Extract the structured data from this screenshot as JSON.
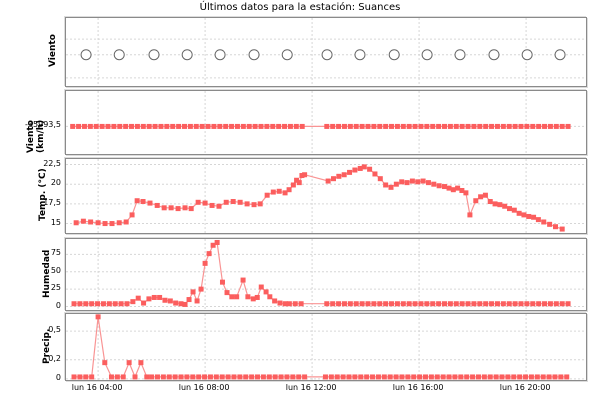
{
  "title": "Últimos datos para la estación: Suances",
  "colors": {
    "marker": "#fb5e5e",
    "line": "#f99494",
    "circle_outline": "#666666",
    "grid": "#d6d6d6",
    "panel_border": "#8a8a8a"
  },
  "chart_data": {
    "type": "line",
    "title": "Últimos datos para la estación: Suances",
    "legend_position": "none",
    "grid": "dashed",
    "x_axis": {
      "xlim": [
        2.8,
        22.24
      ],
      "unit": "hours",
      "ticks": [
        {
          "v": 4,
          "label": "lun 16 04:00"
        },
        {
          "v": 8,
          "label": "lun 16 08:00"
        },
        {
          "v": 12,
          "label": "lun 16 12:00"
        },
        {
          "v": 16,
          "label": "lun 16 16:00"
        },
        {
          "v": 20,
          "label": "lun 16 20:00"
        }
      ]
    },
    "run_step": 0.22,
    "panels": [
      {
        "id": "viento-dir",
        "ylabel": "Viento",
        "marker": "circle-open",
        "line": false,
        "ylim": [
          0,
          1
        ],
        "yticks": [],
        "ygrid": [
          0.69,
          0.46,
          0.12
        ],
        "points": [
          [
            3.55,
            0.46
          ],
          [
            4.79,
            0.46
          ],
          [
            6.09,
            0.46
          ],
          [
            7.33,
            0.46
          ],
          [
            8.56,
            0.46
          ],
          [
            9.83,
            0.46
          ],
          [
            11.07,
            0.46
          ],
          [
            12.56,
            0.46
          ],
          [
            13.79,
            0.46
          ],
          [
            15.07,
            0.46
          ],
          [
            16.3,
            0.46
          ],
          [
            17.53,
            0.46
          ],
          [
            18.8,
            0.46
          ],
          [
            20.04,
            0.46
          ],
          [
            21.27,
            0.46
          ]
        ]
      },
      {
        "id": "viento-vel",
        "ylabel": "Viento (km/h)",
        "marker": "square",
        "ylim": [
          -64000,
          0
        ],
        "yticks": [
          {
            "v": -35993.5,
            "label": "-35993,5"
          }
        ],
        "runs": [
          [
            3.05,
            11.7,
            -35993.5
          ],
          [
            12.55,
            21.65,
            -35993.5
          ]
        ]
      },
      {
        "id": "temp",
        "ylabel": "Temp. (°C)",
        "marker": "square",
        "ylim": [
          13.8,
          23.2
        ],
        "yticks": [
          {
            "v": 15,
            "label": "15"
          },
          {
            "v": 17.5,
            "label": "17,5"
          },
          {
            "v": 20,
            "label": "20"
          },
          {
            "v": 22.5,
            "label": "22,5"
          }
        ],
        "points": [
          [
            3.18,
            15.1
          ],
          [
            3.45,
            15.3
          ],
          [
            3.72,
            15.2
          ],
          [
            4.0,
            15.1
          ],
          [
            4.26,
            15.0
          ],
          [
            4.52,
            15.0
          ],
          [
            4.79,
            15.1
          ],
          [
            5.05,
            15.2
          ],
          [
            5.27,
            16.1
          ],
          [
            5.46,
            17.9
          ],
          [
            5.68,
            17.8
          ],
          [
            5.94,
            17.6
          ],
          [
            6.21,
            17.3
          ],
          [
            6.47,
            17.0
          ],
          [
            6.73,
            17.0
          ],
          [
            6.99,
            16.9
          ],
          [
            7.25,
            17.0
          ],
          [
            7.48,
            16.9
          ],
          [
            7.74,
            17.7
          ],
          [
            8.0,
            17.6
          ],
          [
            8.26,
            17.3
          ],
          [
            8.52,
            17.2
          ],
          [
            8.79,
            17.7
          ],
          [
            9.05,
            17.8
          ],
          [
            9.31,
            17.7
          ],
          [
            9.57,
            17.5
          ],
          [
            9.83,
            17.4
          ],
          [
            10.06,
            17.5
          ],
          [
            10.32,
            18.6
          ],
          [
            10.55,
            19.0
          ],
          [
            10.77,
            19.1
          ],
          [
            10.99,
            18.9
          ],
          [
            11.14,
            19.3
          ],
          [
            11.3,
            19.9
          ],
          [
            11.42,
            20.5
          ],
          [
            11.52,
            20.2
          ],
          [
            11.62,
            21.1
          ],
          [
            11.72,
            21.2
          ],
          [
            12.6,
            20.4
          ],
          [
            12.8,
            20.7
          ],
          [
            13.0,
            21.0
          ],
          [
            13.2,
            21.2
          ],
          [
            13.4,
            21.5
          ],
          [
            13.6,
            21.8
          ],
          [
            13.8,
            22.0
          ],
          [
            13.95,
            22.2
          ],
          [
            14.15,
            21.9
          ],
          [
            14.35,
            21.3
          ],
          [
            14.55,
            20.7
          ],
          [
            14.75,
            19.9
          ],
          [
            14.95,
            19.6
          ],
          [
            15.15,
            20.0
          ],
          [
            15.35,
            20.3
          ],
          [
            15.55,
            20.2
          ],
          [
            15.75,
            20.4
          ],
          [
            15.95,
            20.3
          ],
          [
            16.15,
            20.4
          ],
          [
            16.35,
            20.2
          ],
          [
            16.55,
            20.0
          ],
          [
            16.75,
            19.8
          ],
          [
            16.95,
            19.7
          ],
          [
            17.12,
            19.5
          ],
          [
            17.28,
            19.3
          ],
          [
            17.44,
            19.5
          ],
          [
            17.6,
            19.2
          ],
          [
            17.75,
            18.9
          ],
          [
            17.9,
            16.1
          ],
          [
            18.12,
            17.9
          ],
          [
            18.3,
            18.4
          ],
          [
            18.48,
            18.6
          ],
          [
            18.66,
            17.8
          ],
          [
            18.84,
            17.5
          ],
          [
            19.02,
            17.4
          ],
          [
            19.2,
            17.2
          ],
          [
            19.38,
            16.9
          ],
          [
            19.56,
            16.7
          ],
          [
            19.74,
            16.3
          ],
          [
            19.92,
            16.1
          ],
          [
            20.1,
            15.9
          ],
          [
            20.28,
            15.8
          ],
          [
            20.46,
            15.5
          ],
          [
            20.66,
            15.2
          ],
          [
            20.88,
            14.9
          ],
          [
            21.1,
            14.6
          ],
          [
            21.35,
            14.3
          ]
        ]
      },
      {
        "id": "humedad",
        "ylabel": "Humedad",
        "marker": "square",
        "ylim": [
          -5,
          97
        ],
        "yticks": [
          {
            "v": 0,
            "label": "0"
          },
          {
            "v": 25,
            "label": "25"
          },
          {
            "v": 50,
            "label": "50"
          },
          {
            "v": 75,
            "label": "75"
          }
        ],
        "points": [
          [
            3.1,
            4
          ],
          [
            3.32,
            4
          ],
          [
            3.54,
            4
          ],
          [
            3.76,
            4
          ],
          [
            3.98,
            4
          ],
          [
            4.2,
            4
          ],
          [
            4.42,
            4
          ],
          [
            4.64,
            4
          ],
          [
            4.86,
            4
          ],
          [
            5.08,
            4
          ],
          [
            5.3,
            7
          ],
          [
            5.5,
            12
          ],
          [
            5.7,
            5
          ],
          [
            5.9,
            11
          ],
          [
            6.1,
            13
          ],
          [
            6.3,
            13
          ],
          [
            6.5,
            9
          ],
          [
            6.7,
            8
          ],
          [
            6.9,
            5
          ],
          [
            7.1,
            4
          ],
          [
            7.25,
            3
          ],
          [
            7.4,
            10
          ],
          [
            7.55,
            21
          ],
          [
            7.7,
            8
          ],
          [
            7.85,
            25
          ],
          [
            8.0,
            62
          ],
          [
            8.15,
            76
          ],
          [
            8.3,
            88
          ],
          [
            8.45,
            92
          ],
          [
            8.65,
            35
          ],
          [
            8.82,
            20
          ],
          [
            9.0,
            14
          ],
          [
            9.18,
            14
          ],
          [
            9.42,
            38
          ],
          [
            9.6,
            14
          ],
          [
            9.8,
            11
          ],
          [
            9.95,
            13
          ],
          [
            10.1,
            28
          ],
          [
            10.28,
            21
          ],
          [
            10.42,
            14
          ],
          [
            10.6,
            8
          ],
          [
            10.8,
            5
          ],
          [
            11.0,
            4
          ]
        ],
        "runs": [
          [
            11.15,
            11.75,
            4
          ],
          [
            12.55,
            21.65,
            4
          ]
        ]
      },
      {
        "id": "precip",
        "ylabel": "Precip.",
        "marker": "square",
        "ylim": [
          -0.012,
          0.68
        ],
        "yticks": [
          {
            "v": 0,
            "label": "0"
          },
          {
            "v": 0.2,
            "label": "0,2"
          },
          {
            "v": 0.5,
            "label": "0,5"
          }
        ],
        "points": [
          [
            3.1,
            0.02
          ],
          [
            3.32,
            0.02
          ],
          [
            3.54,
            0.02
          ],
          [
            3.76,
            0.02
          ],
          [
            4.0,
            0.65
          ],
          [
            4.25,
            0.17
          ],
          [
            4.5,
            0.02
          ],
          [
            4.72,
            0.02
          ],
          [
            4.94,
            0.02
          ],
          [
            5.16,
            0.17
          ],
          [
            5.38,
            0.02
          ],
          [
            5.6,
            0.17
          ],
          [
            5.82,
            0.02
          ]
        ],
        "runs": [
          [
            6.0,
            11.75,
            0.02
          ],
          [
            12.5,
            21.65,
            0.02
          ]
        ]
      }
    ]
  }
}
